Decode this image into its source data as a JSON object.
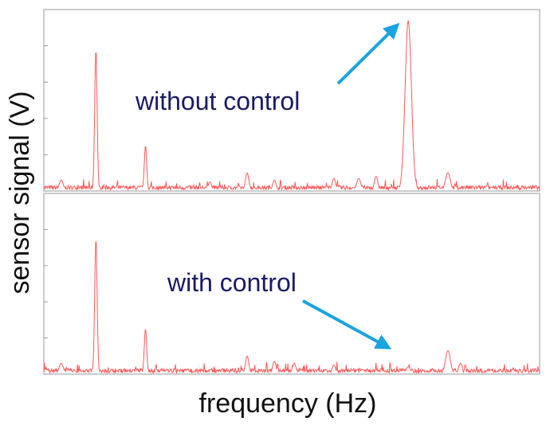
{
  "chart_data": [
    {
      "type": "line",
      "panel": "top",
      "xlabel": "frequency (Hz)",
      "ylabel": "sensor signal (V)",
      "xlim": [
        0,
        100
      ],
      "ylim": [
        0,
        100
      ],
      "grid": false,
      "tick_labels_shown": false,
      "series": [
        {
          "color": "#ff5a5a",
          "peaks": [
            {
              "x": 10.5,
              "y": 78,
              "width": 0.35
            },
            {
              "x": 20.5,
              "y": 25,
              "width": 0.35
            },
            {
              "x": 41,
              "y": 10,
              "width": 0.5
            },
            {
              "x": 73.5,
              "y": 94,
              "width": 0.9
            },
            {
              "x": 81.5,
              "y": 10,
              "width": 0.7
            },
            {
              "x": 3.5,
              "y": 6,
              "width": 0.6
            },
            {
              "x": 33.5,
              "y": 5,
              "width": 0.5
            },
            {
              "x": 46.5,
              "y": 6,
              "width": 0.5
            },
            {
              "x": 58.5,
              "y": 7,
              "width": 0.5
            },
            {
              "x": 63.5,
              "y": 7,
              "width": 0.6
            },
            {
              "x": 67,
              "y": 8,
              "width": 0.5
            }
          ],
          "noise_floor": 2.5
        }
      ],
      "annotations": [
        {
          "text": "without control",
          "target_x": 73.5,
          "target_y": 94
        }
      ]
    },
    {
      "type": "line",
      "panel": "bottom",
      "xlim": [
        0,
        100
      ],
      "ylim": [
        0,
        100
      ],
      "grid": false,
      "tick_labels_shown": false,
      "series": [
        {
          "color": "#ff5a5a",
          "peaks": [
            {
              "x": 10.5,
              "y": 75,
              "width": 0.35
            },
            {
              "x": 20.5,
              "y": 25,
              "width": 0.35
            },
            {
              "x": 41,
              "y": 10,
              "width": 0.5
            },
            {
              "x": 73.5,
              "y": 4,
              "width": 0.6
            },
            {
              "x": 81.5,
              "y": 13,
              "width": 0.7
            },
            {
              "x": 3.5,
              "y": 6,
              "width": 0.6
            },
            {
              "x": 46.5,
              "y": 7,
              "width": 0.5
            },
            {
              "x": 50.5,
              "y": 6,
              "width": 0.5
            },
            {
              "x": 58.5,
              "y": 5,
              "width": 0.5
            },
            {
              "x": 84,
              "y": 6,
              "width": 0.5
            }
          ],
          "noise_floor": 2.5
        }
      ],
      "annotations": [
        {
          "text": "with control",
          "target_x": 72.5,
          "target_y": 8
        }
      ]
    }
  ],
  "colors": {
    "trace": "#ff5a5a",
    "arrow": "#1aa3e0",
    "annotation_text": "#1a1a66",
    "axes": "#999999"
  }
}
